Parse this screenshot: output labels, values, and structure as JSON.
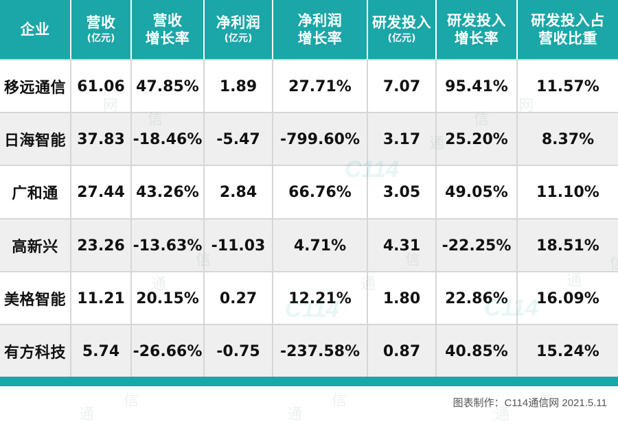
{
  "headers": [
    {
      "line1": "企业",
      "line2": "",
      "unit": ""
    },
    {
      "line1": "营收",
      "line2": "",
      "unit": "(亿元)"
    },
    {
      "line1": "营收",
      "line2": "增长率",
      "unit": ""
    },
    {
      "line1": "净利润",
      "line2": "",
      "unit": "(亿元)"
    },
    {
      "line1": "净利润",
      "line2": "增长率",
      "unit": ""
    },
    {
      "line1": "研发投入",
      "line2": "",
      "unit": "(亿元)"
    },
    {
      "line1": "研发投入",
      "line2": "增长率",
      "unit": ""
    },
    {
      "line1": "研发投入占",
      "line2": "营收比重",
      "unit": ""
    }
  ],
  "chart_data": {
    "type": "table",
    "columns": [
      "企业",
      "营收(亿元)",
      "营收增长率",
      "净利润(亿元)",
      "净利润增长率",
      "研发投入(亿元)",
      "研发投入增长率",
      "研发投入占营收比重"
    ],
    "rows": [
      [
        "移远通信",
        "61.06",
        "47.85%",
        "1.89",
        "27.71%",
        "7.07",
        "95.41%",
        "11.57%"
      ],
      [
        "日海智能",
        "37.83",
        "-18.46%",
        "-5.47",
        "-799.60%",
        "3.17",
        "25.20%",
        "8.37%"
      ],
      [
        "广和通",
        "27.44",
        "43.26%",
        "2.84",
        "66.76%",
        "3.05",
        "49.05%",
        "11.10%"
      ],
      [
        "高新兴",
        "23.26",
        "-13.63%",
        "-11.03",
        "4.71%",
        "4.31",
        "-22.25%",
        "18.51%"
      ],
      [
        "美格智能",
        "11.21",
        "20.15%",
        "0.27",
        "12.21%",
        "1.80",
        "22.86%",
        "16.09%"
      ],
      [
        "有方科技",
        "5.74",
        "-26.66%",
        "-0.75",
        "-237.58%",
        "0.87",
        "40.85%",
        "15.24%"
      ]
    ]
  },
  "footer": "图表制作：C114通信网 2021.5.11",
  "watermark": {
    "logo": "C114",
    "chars": [
      "通",
      "信",
      "网"
    ]
  },
  "colors": {
    "header_bg": "#1ba6a7",
    "header_text": "#ffffff",
    "row_alt_bg": "#efefef",
    "grid": "#d6d6d6",
    "bottom_bar": "#1ba6a7"
  }
}
